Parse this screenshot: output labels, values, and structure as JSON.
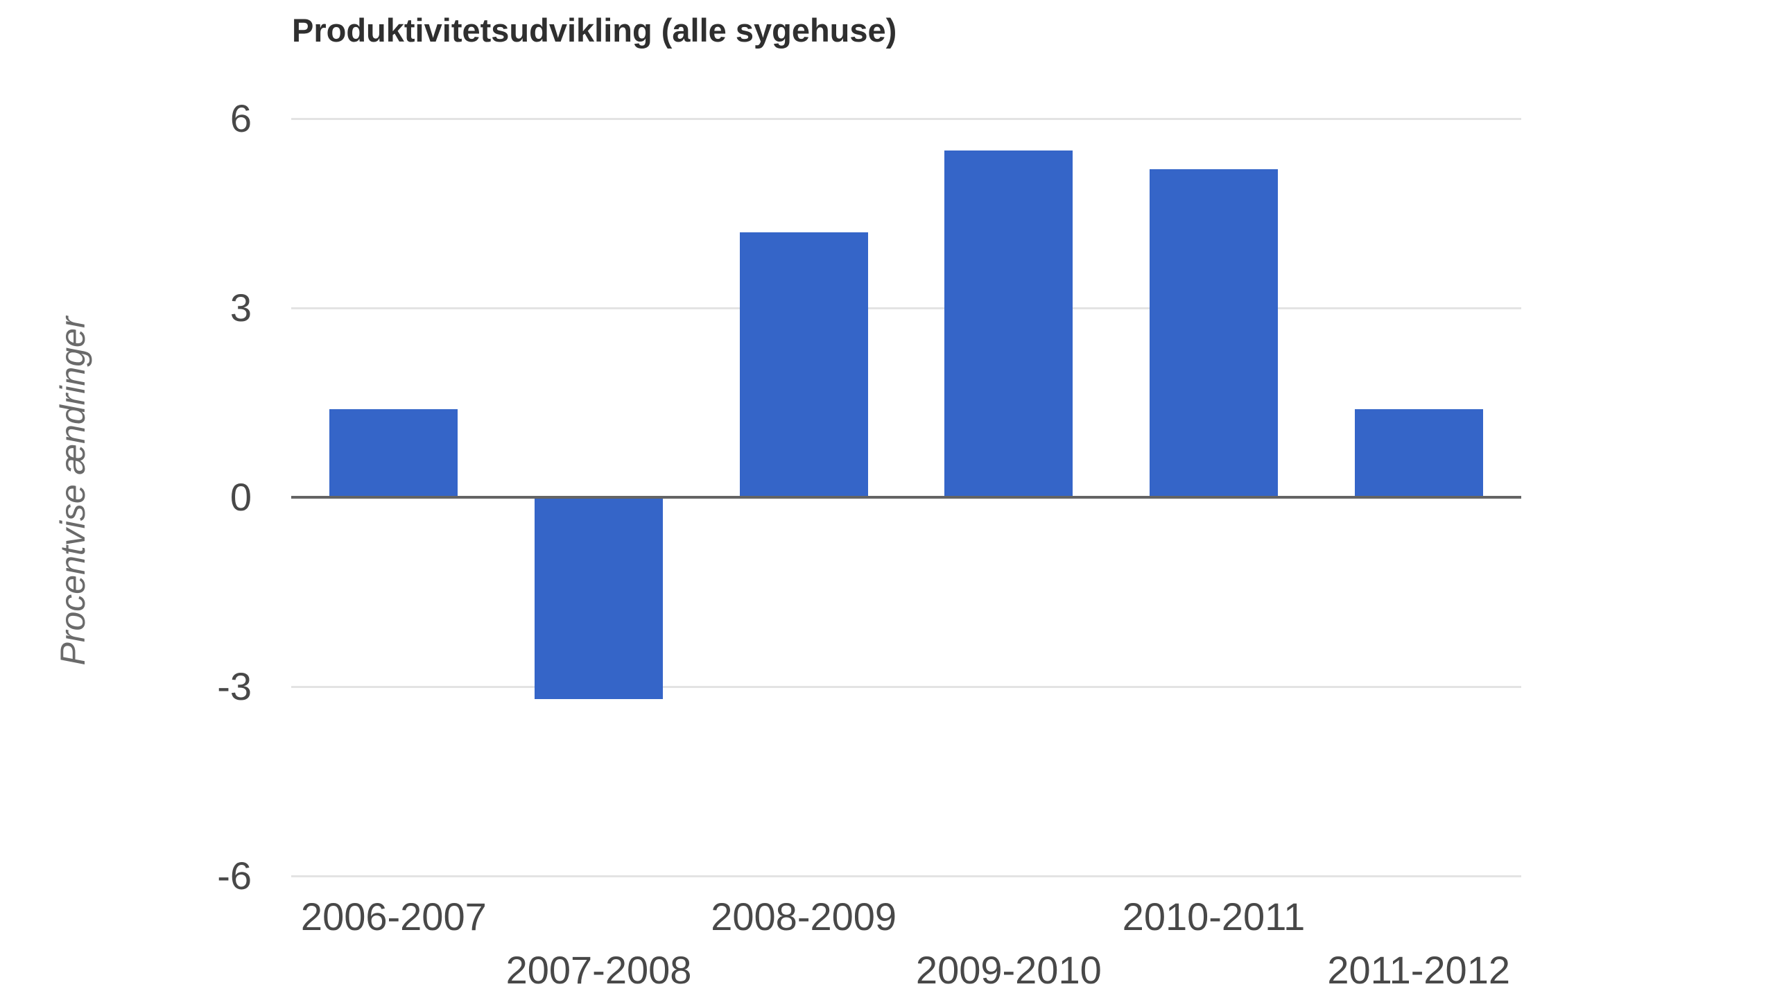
{
  "chart_data": {
    "type": "bar",
    "title": "Produktivitetsudvikling (alle sygehuse)",
    "ylabel": "Procentvise ændringer",
    "xlabel": "",
    "categories": [
      "2006-2007",
      "2007-2008",
      "2008-2009",
      "2009-2010",
      "2010-2011",
      "2011-2012"
    ],
    "values": [
      1.4,
      -3.2,
      4.2,
      5.5,
      5.2,
      1.4
    ],
    "yticks": [
      6,
      3,
      0,
      -3,
      -6
    ],
    "ylim": [
      -6,
      6
    ],
    "grid": true,
    "legend_position": "none",
    "colors": {
      "bar": "#3565c8",
      "gridline": "#e3e3e3",
      "baseline": "#646464",
      "title_text": "#2f2f2f",
      "tick_text": "#484848",
      "axis_title_text": "#6a6a6a",
      "background": "#ffffff"
    }
  }
}
